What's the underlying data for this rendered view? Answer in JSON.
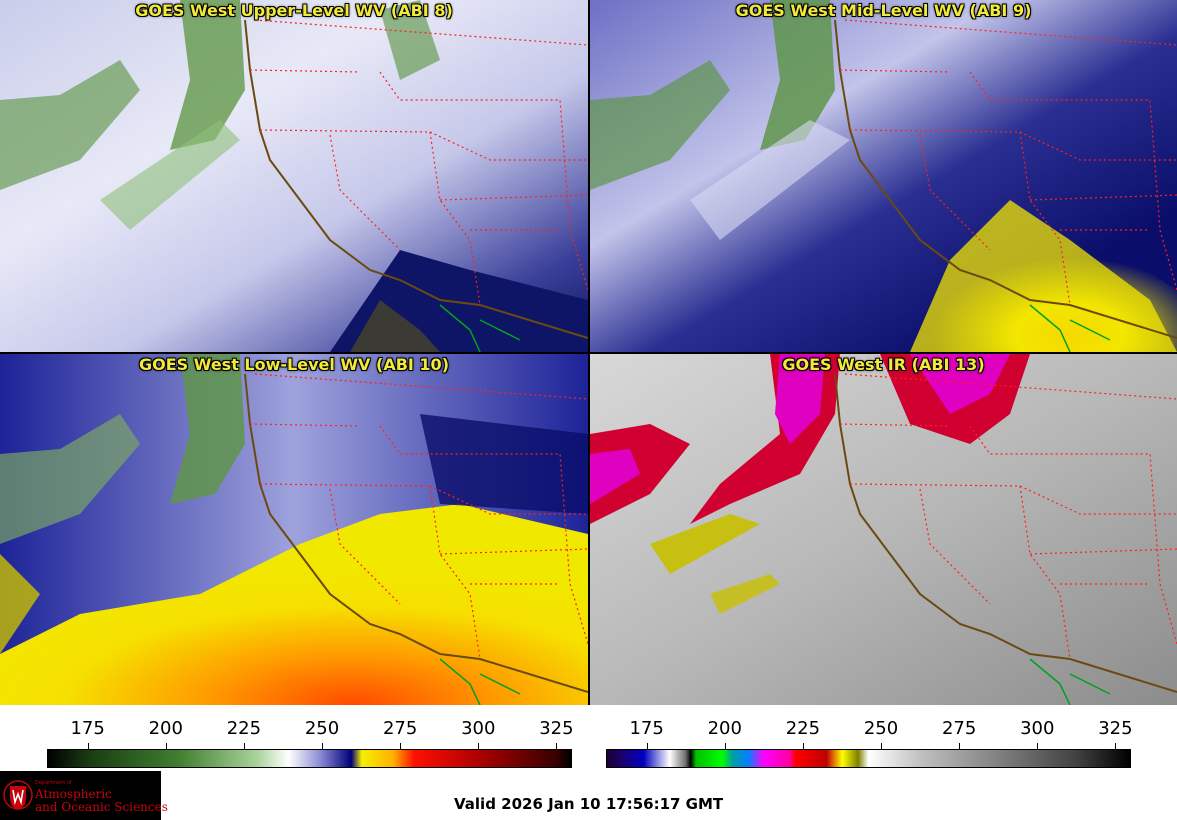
{
  "panels": [
    {
      "id": "upper",
      "title": "GOES West Upper-Level WV (ABI 8)",
      "palette": "wv-upper"
    },
    {
      "id": "mid",
      "title": "GOES West Mid-Level WV (ABI 9)",
      "palette": "wv-mid"
    },
    {
      "id": "low",
      "title": "GOES West Low-Level WV (ABI 10)",
      "palette": "wv-low"
    },
    {
      "id": "ir",
      "title": "GOES West IR (ABI 13)",
      "palette": "ir"
    }
  ],
  "colorbars": [
    {
      "id": "wv",
      "ticks": [
        "175",
        "200",
        "225",
        "250",
        "275",
        "300",
        "325"
      ],
      "min": 162,
      "max": 330,
      "stops": [
        [
          "#000000",
          0
        ],
        [
          "#1a3d12",
          0.08
        ],
        [
          "#3f7f2f",
          0.25
        ],
        [
          "#a9d39a",
          0.4
        ],
        [
          "#ffffff",
          0.46
        ],
        [
          "#8c8cd6",
          0.52
        ],
        [
          "#00007a",
          0.58
        ],
        [
          "#f5f000",
          0.6
        ],
        [
          "#ffb000",
          0.66
        ],
        [
          "#ff1000",
          0.7
        ],
        [
          "#b00000",
          0.82
        ],
        [
          "#3a0000",
          0.97
        ],
        [
          "#000000",
          1
        ]
      ]
    },
    {
      "id": "ir",
      "ticks": [
        "175",
        "200",
        "225",
        "250",
        "275",
        "300",
        "325"
      ],
      "min": 162,
      "max": 330,
      "stops": [
        [
          "#1a0030",
          0
        ],
        [
          "#1a0070",
          0.03
        ],
        [
          "#0000c0",
          0.07
        ],
        [
          "#ffffff",
          0.12
        ],
        [
          "#707070",
          0.15
        ],
        [
          "#000000",
          0.16
        ],
        [
          "#00c000",
          0.17
        ],
        [
          "#00ff00",
          0.22
        ],
        [
          "#00a0a0",
          0.24
        ],
        [
          "#0080ff",
          0.27
        ],
        [
          "#ff00ff",
          0.3
        ],
        [
          "#ff00a0",
          0.35
        ],
        [
          "#ff0000",
          0.36
        ],
        [
          "#c00000",
          0.42
        ],
        [
          "#ffff00",
          0.45
        ],
        [
          "#808000",
          0.48
        ],
        [
          "#ffffff",
          0.5
        ],
        [
          "#c0c0c0",
          0.6
        ],
        [
          "#808080",
          0.75
        ],
        [
          "#404040",
          0.9
        ],
        [
          "#000000",
          1
        ]
      ]
    }
  ],
  "footer": {
    "valid_text": "Valid 2026 Jan 10 17:56:17 GMT",
    "logo_dept": "Department of",
    "logo_line1": "Atmospheric",
    "logo_line2": "and Oceanic Sciences"
  },
  "colors": {
    "title_text": "#f2ea3a",
    "state_lines": "#ff2020",
    "coast_lines": "#6b4a10",
    "mexico_lines": "#00a020"
  }
}
